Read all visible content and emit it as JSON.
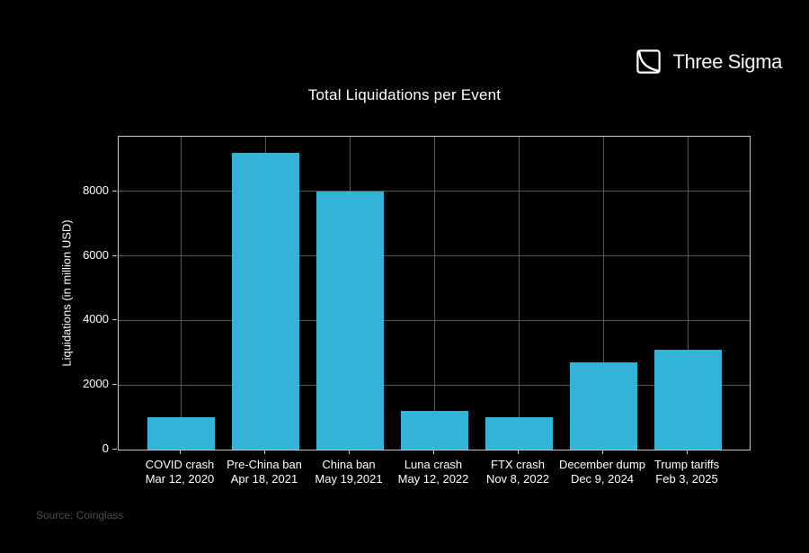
{
  "header": {
    "logo_text": "Three Sigma"
  },
  "chart_data": {
    "type": "bar",
    "title": "Total Liquidations per Event",
    "xlabel": "",
    "ylabel": "Liquidations (in million USD)",
    "categories": [
      {
        "event": "COVID crash",
        "date": "Mar 12, 2020"
      },
      {
        "event": "Pre-China ban",
        "date": "Apr 18, 2021"
      },
      {
        "event": "China ban",
        "date": "May 19,2021"
      },
      {
        "event": "Luna crash",
        "date": "May 12, 2022"
      },
      {
        "event": "FTX crash",
        "date": "Nov 8, 2022"
      },
      {
        "event": "December dump",
        "date": "Dec 9, 2024"
      },
      {
        "event": "Trump tariffs",
        "date": "Feb 3, 2025"
      }
    ],
    "values": [
      1000,
      9200,
      8000,
      1200,
      1000,
      2700,
      3100
    ],
    "yticks": [
      0,
      2000,
      4000,
      6000,
      8000
    ],
    "ylim": [
      0,
      9700
    ],
    "grid": true,
    "legend": false
  },
  "colors": {
    "bar": "#33b3d6",
    "grid": "#565656",
    "spine": "#c9c9c9",
    "text": "#ffffff",
    "muted_text": "#4d4d4d",
    "background": "#000000"
  },
  "footer": {
    "source": "Source: Coinglass"
  }
}
